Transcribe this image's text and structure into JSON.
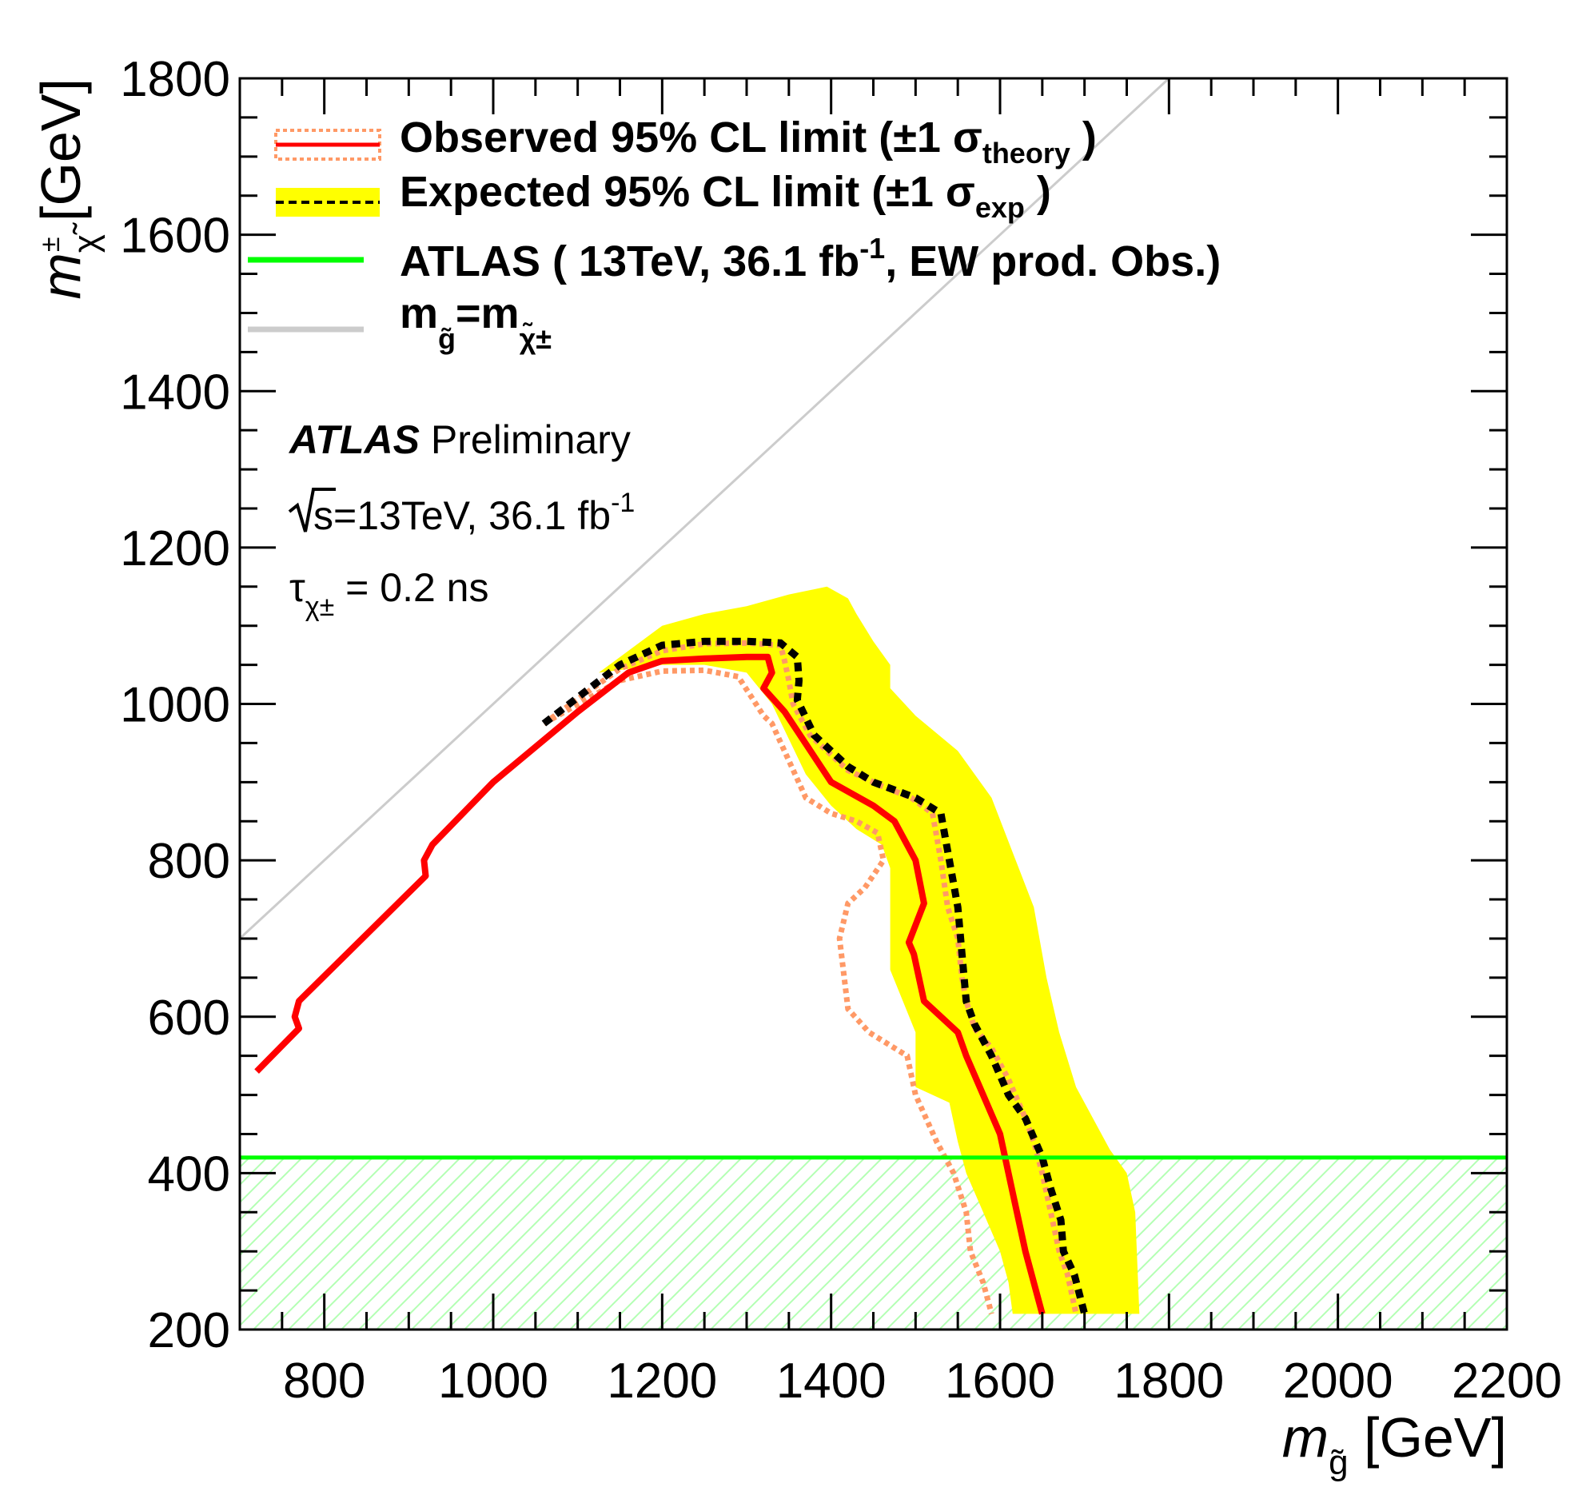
{
  "chart_data": {
    "type": "line",
    "title": "",
    "xlabel": "m_g~ [GeV]",
    "ylabel": "m_χ~± [GeV]",
    "xlim": [
      700,
      2200
    ],
    "ylim": [
      200,
      1800
    ],
    "xticks": [
      800,
      1000,
      1200,
      1400,
      1600,
      1800,
      2000,
      2200
    ],
    "yticks": [
      200,
      400,
      600,
      800,
      1000,
      1200,
      1400,
      1600,
      1800
    ],
    "xtick_labels": [
      "800",
      "1000",
      "1200",
      "1400",
      "1600",
      "1800",
      "2000",
      "2200"
    ],
    "ytick_labels": [
      "200",
      "400",
      "600",
      "800",
      "1000",
      "1200",
      "1400",
      "1600",
      "1800"
    ],
    "x_title": {
      "symbol": "m",
      "sub": "g̃",
      "unit": "[GeV]"
    },
    "y_title": {
      "symbol": "m",
      "sub": "χ̃",
      "sup": "±",
      "unit": "[GeV]"
    },
    "legend": [
      {
        "key": "observed",
        "text": "Observed 95% CL limit (±1 σ",
        "sub": "theory",
        "tail": " )"
      },
      {
        "key": "expected",
        "text": "Expected 95% CL limit (±1 σ",
        "sub": "exp",
        "tail": " )"
      },
      {
        "key": "atlas_ew",
        "text": "ATLAS ( 13TeV, 36.1 fb",
        "sup": "-1",
        "tail": ", EW prod. Obs.)"
      },
      {
        "key": "diagonal",
        "text": "m",
        "sub1": "g̃",
        "mid": "=m",
        "sub2": "χ̃±"
      }
    ],
    "annotations": {
      "experiment": "ATLAS",
      "status": "Preliminary",
      "energy": "s=13TeV, 36.1 fb",
      "energy_sup": "-1",
      "lifetime_symbol": "τ",
      "lifetime_sub": "χ±",
      "lifetime_value": " = 0.2 ns"
    },
    "colors": {
      "observed": "#ff0000",
      "observed_band": "#ff9966",
      "expected": "#000000",
      "expected_band": "#ffff00",
      "atlas_ew": "#00ff00",
      "atlas_ew_hatch": "#b3ffb3",
      "diagonal": "#cccccc"
    },
    "series": [
      {
        "name": "Observed 95% CL limit",
        "key": "observed",
        "x": [
          720,
          770,
          765,
          770,
          920,
          918,
          928,
          1000,
          1100,
          1160,
          1200,
          1250,
          1300,
          1325,
          1330,
          1320,
          1345,
          1400,
          1450,
          1475,
          1500,
          1510,
          1492,
          1498,
          1510,
          1550,
          1560,
          1580,
          1600,
          1620,
          1630,
          1650
        ],
        "y": [
          530,
          585,
          600,
          620,
          780,
          800,
          820,
          900,
          990,
          1040,
          1055,
          1058,
          1060,
          1060,
          1040,
          1020,
          990,
          900,
          870,
          850,
          800,
          745,
          695,
          680,
          620,
          580,
          550,
          500,
          450,
          350,
          300,
          220
        ]
      },
      {
        "name": "Observed +1σ theory",
        "key": "observed_band_up",
        "x": [
          1060,
          1150,
          1200,
          1250,
          1300,
          1340,
          1345,
          1350,
          1355,
          1375,
          1420,
          1460,
          1495,
          1520,
          1530,
          1538,
          1550,
          1555,
          1560,
          1570,
          1590,
          1610,
          1630,
          1640,
          1650,
          1660,
          1670,
          1680,
          1690
        ],
        "y": [
          975,
          1045,
          1068,
          1077,
          1078,
          1075,
          1055,
          1030,
          1000,
          960,
          915,
          895,
          880,
          860,
          800,
          740,
          700,
          650,
          620,
          585,
          560,
          520,
          470,
          440,
          400,
          350,
          300,
          270,
          220
        ]
      },
      {
        "name": "Observed -1σ theory",
        "key": "observed_band_down",
        "x": [
          1060,
          1150,
          1200,
          1250,
          1290,
          1305,
          1320,
          1330,
          1370,
          1400,
          1430,
          1455,
          1462,
          1440,
          1420,
          1410,
          1420,
          1445,
          1490,
          1500,
          1525,
          1545,
          1560,
          1565,
          1580,
          1590
        ],
        "y": [
          975,
          1030,
          1042,
          1043,
          1035,
          1010,
          985,
          975,
          880,
          860,
          850,
          835,
          800,
          765,
          745,
          700,
          610,
          580,
          550,
          500,
          440,
          400,
          350,
          300,
          260,
          220
        ]
      },
      {
        "name": "Expected 95% CL limit",
        "key": "expected",
        "x": [
          1060,
          1150,
          1200,
          1250,
          1300,
          1340,
          1360,
          1362,
          1360,
          1380,
          1420,
          1450,
          1500,
          1530,
          1540,
          1550,
          1555,
          1560,
          1570,
          1590,
          1610,
          1630,
          1650,
          1660,
          1672,
          1675,
          1688,
          1700
        ],
        "y": [
          975,
          1050,
          1075,
          1080,
          1080,
          1078,
          1060,
          1030,
          1005,
          960,
          920,
          900,
          880,
          860,
          800,
          740,
          680,
          620,
          590,
          550,
          500,
          470,
          420,
          380,
          340,
          300,
          270,
          220
        ]
      },
      {
        "name": "Expected ±1σ exp band",
        "key": "expected_band",
        "band_upper_x": [
          1125,
          1200,
          1250,
          1300,
          1350,
          1395,
          1420,
          1430,
          1450,
          1470,
          1470,
          1500,
          1550,
          1590,
          1640,
          1655,
          1670,
          1690,
          1730,
          1750,
          1760,
          1765
        ],
        "band_upper_y": [
          1040,
          1100,
          1115,
          1125,
          1140,
          1150,
          1135,
          1115,
          1080,
          1050,
          1020,
          985,
          940,
          880,
          740,
          650,
          580,
          510,
          430,
          400,
          350,
          220
        ],
        "band_lower_x": [
          1125,
          1200,
          1250,
          1300,
          1330,
          1370,
          1400,
          1430,
          1460,
          1470,
          1470,
          1500,
          1500,
          1540,
          1550,
          1560,
          1580,
          1600,
          1610,
          1615
        ],
        "band_lower_y": [
          1040,
          1050,
          1050,
          1040,
          1000,
          910,
          870,
          840,
          820,
          790,
          660,
          580,
          510,
          490,
          440,
          400,
          350,
          300,
          260,
          220
        ]
      },
      {
        "name": "ATLAS 13TeV 36.1 fb-1 EW prod. Obs.",
        "key": "atlas_ew",
        "y_level": 420
      },
      {
        "name": "m_g = m_chi diagonal",
        "key": "diagonal",
        "x": [
          700,
          1800
        ],
        "y": [
          700,
          1800
        ]
      }
    ]
  }
}
